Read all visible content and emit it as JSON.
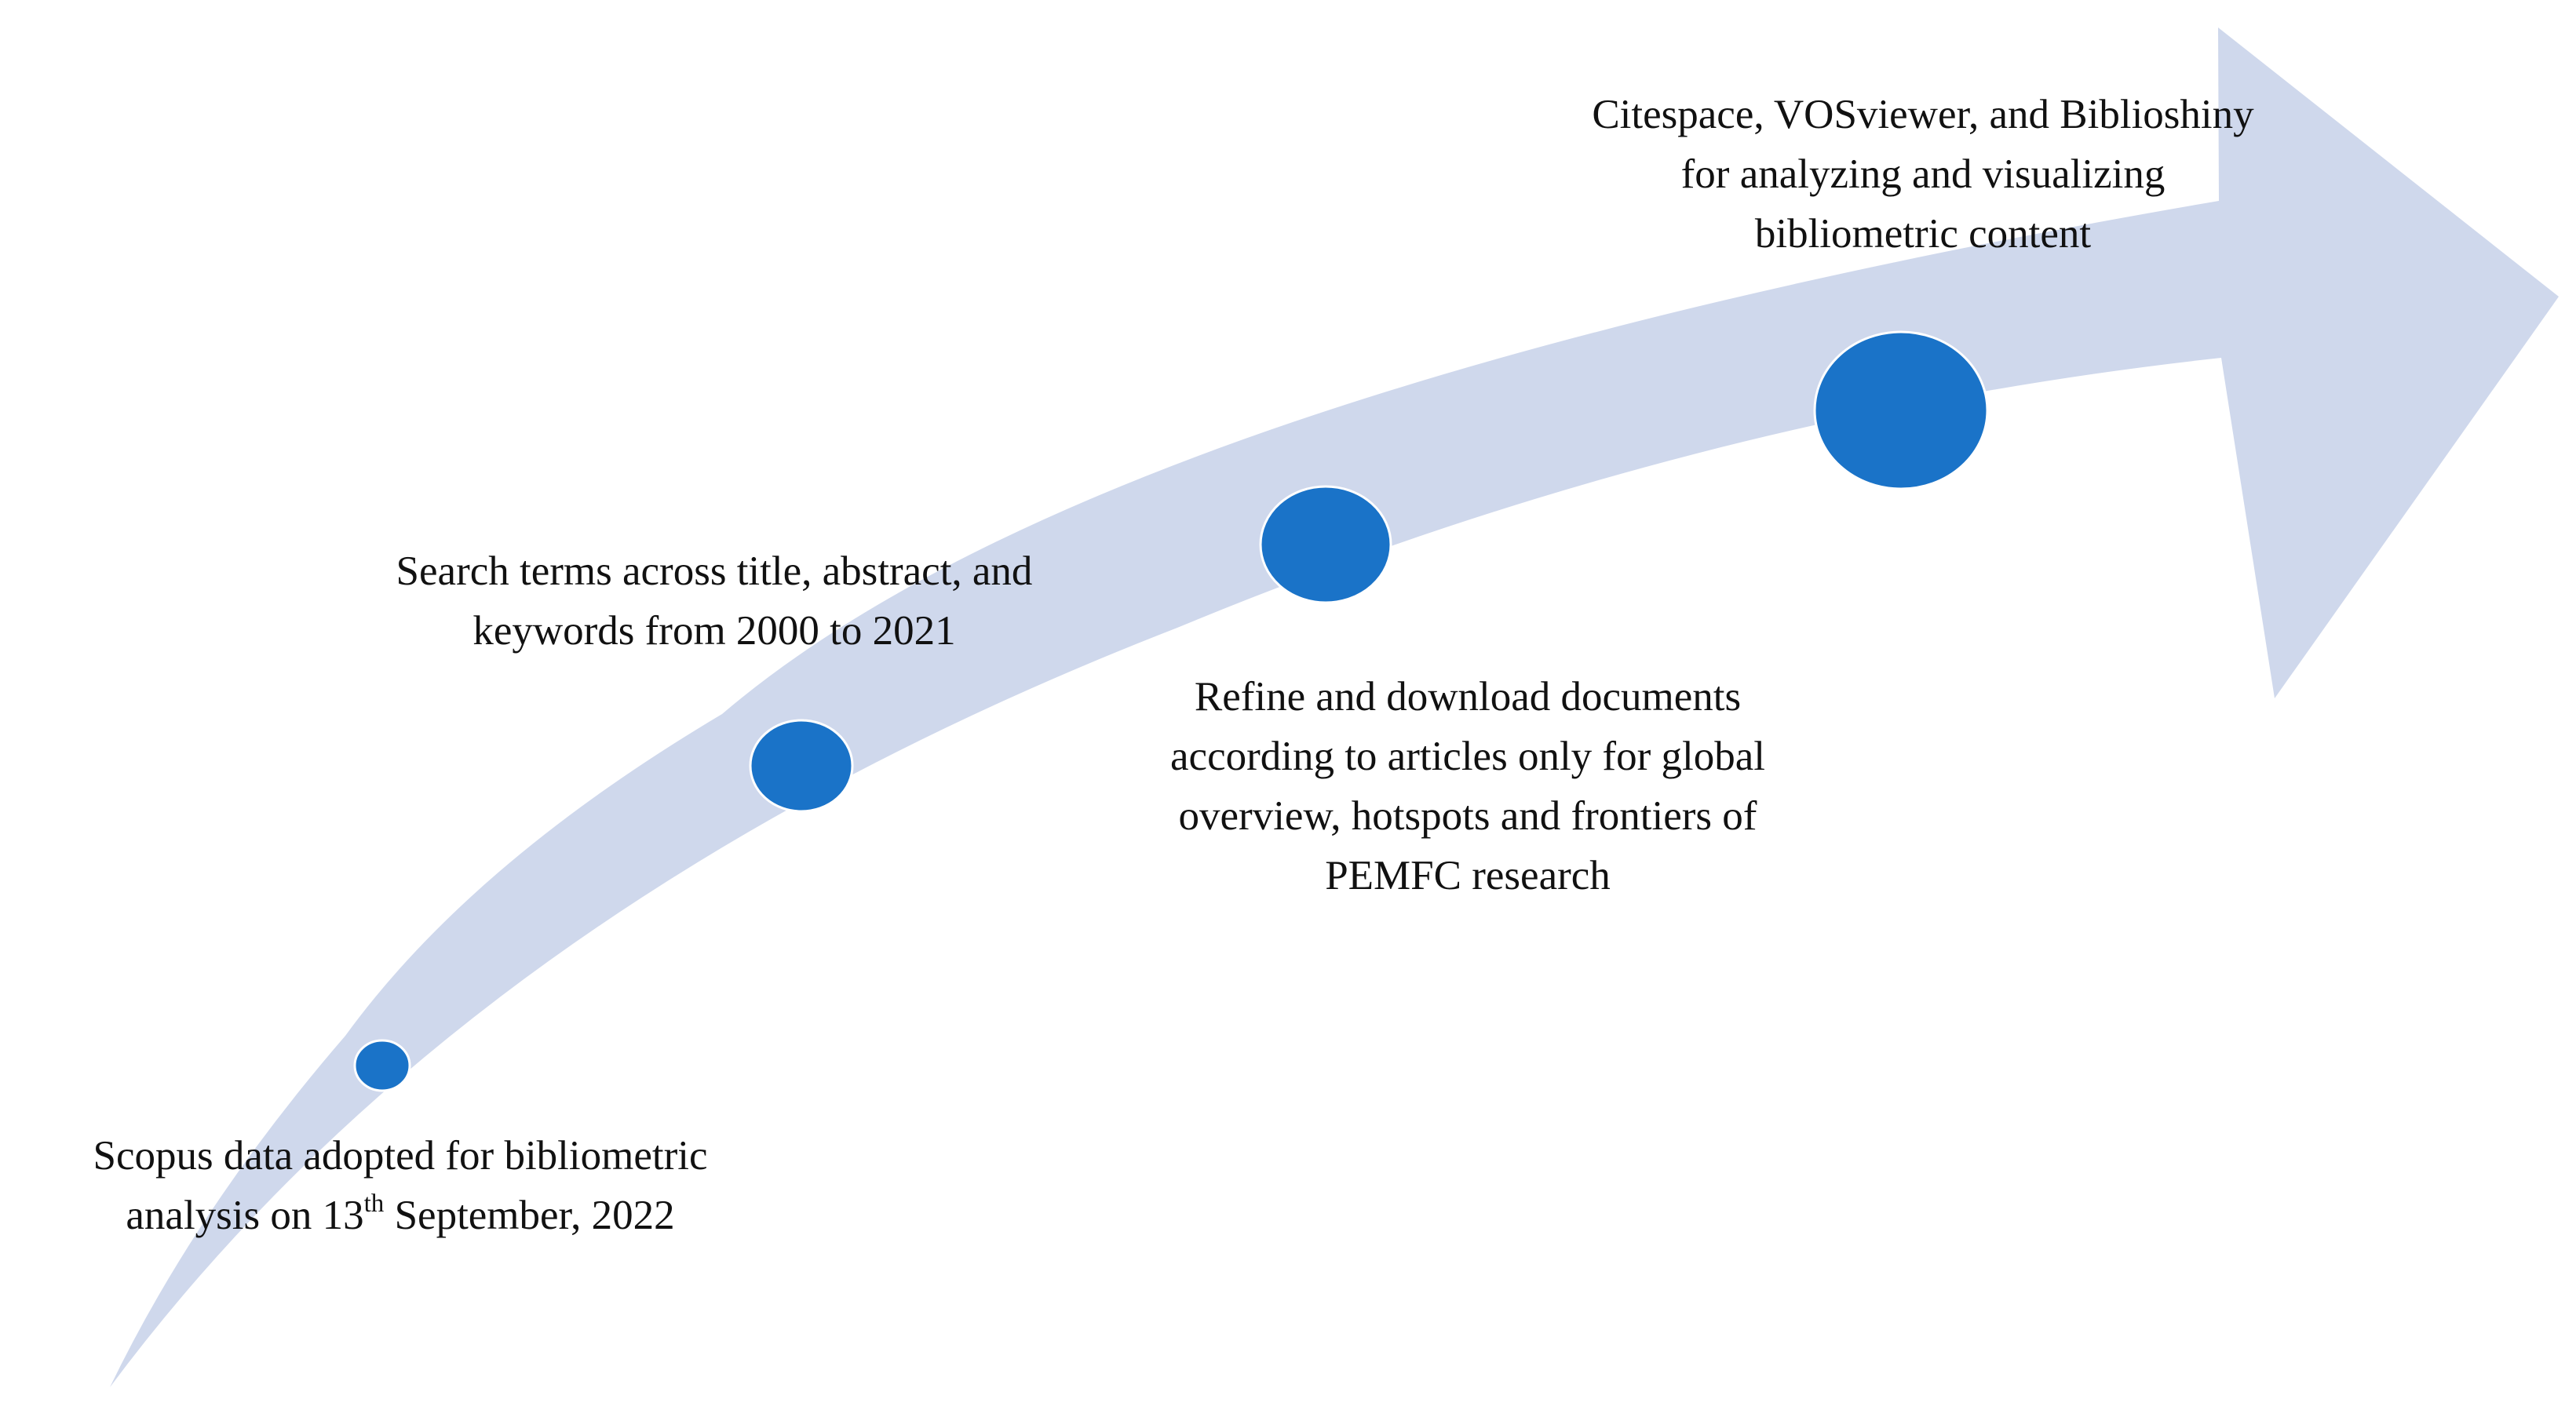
{
  "colors": {
    "arrow_fill": "#cfd8ec",
    "node_fill": "#1a73c8",
    "node_stroke": "#ffffff",
    "text": "#111111"
  },
  "steps": [
    {
      "line1_before_sup": "Scopus data adopted for bibliometric",
      "line2_before_sup": "analysis on 13",
      "line2_sup": "th",
      "line2_after_sup": " September, 2022"
    },
    {
      "line1": "Search terms across title, abstract, and",
      "line2": "keywords from 2000 to 2021"
    },
    {
      "line1": "Refine and download documents",
      "line2": "according to articles only for global",
      "line3": "overview, hotspots and frontiers of",
      "line4": "PEMFC research"
    },
    {
      "line1": "Citespace, VOSviewer, and Biblioshiny",
      "line2": "for analyzing and visualizing",
      "line3": "bibliometric content"
    }
  ]
}
